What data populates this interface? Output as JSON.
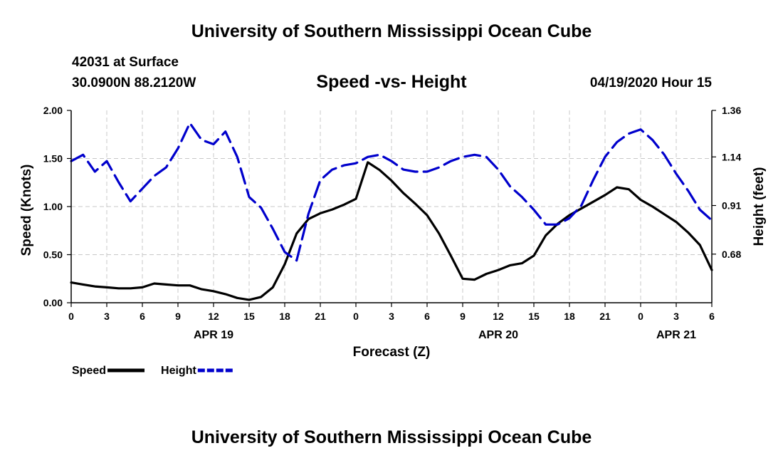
{
  "header": {
    "title": "University of Southern Mississippi Ocean Cube",
    "station": "42031 at Surface",
    "coords": "30.0900N 88.2120W",
    "datetime": "04/19/2020 Hour 15"
  },
  "footer": {
    "title": "University of Southern Mississippi Ocean Cube"
  },
  "chart_data": {
    "type": "line",
    "title": "Speed -vs- Height",
    "xlabel": "Forecast (Z)",
    "ylabel": "Speed (Knots)",
    "y2label": "Height (feet)",
    "x_range": [
      0,
      54
    ],
    "x_ticks": [
      0,
      3,
      6,
      9,
      12,
      15,
      18,
      21,
      24,
      27,
      30,
      33,
      36,
      39,
      42,
      45,
      48,
      51,
      54
    ],
    "x_tick_labels": [
      "0",
      "3",
      "6",
      "9",
      "12",
      "15",
      "18",
      "21",
      "0",
      "3",
      "6",
      "9",
      "12",
      "15",
      "18",
      "21",
      "0",
      "3",
      "6"
    ],
    "date_labels": [
      {
        "x": 12,
        "text": "APR 19"
      },
      {
        "x": 36,
        "text": "APR 20"
      },
      {
        "x": 51,
        "text": "APR 21"
      }
    ],
    "ylim": [
      0,
      2
    ],
    "y_ticks": [
      0,
      0.5,
      1.0,
      1.5,
      2.0
    ],
    "y_tick_labels": [
      "0.00",
      "0.50",
      "1.00",
      "1.50",
      "2.00"
    ],
    "y2lim": [
      0.45,
      1.36
    ],
    "y2_ticks": [
      0.68,
      0.91,
      1.14,
      1.36
    ],
    "y2_tick_labels": [
      "0.68",
      "0.91",
      "1.14",
      "1.36"
    ],
    "grid": true,
    "legend": "bottom-left",
    "series": [
      {
        "name": "Speed",
        "axis": "left",
        "color": "#000000",
        "style": "solid",
        "x": [
          0,
          1,
          2,
          3,
          4,
          5,
          6,
          7,
          8,
          9,
          10,
          11,
          12,
          13,
          14,
          15,
          16,
          17,
          18,
          19,
          20,
          21,
          22,
          23,
          24,
          25,
          26,
          27,
          28,
          29,
          30,
          31,
          32,
          33,
          34,
          35,
          36,
          37,
          38,
          39,
          40,
          41,
          42,
          43,
          44,
          45,
          46,
          47,
          48,
          49,
          50,
          51,
          52,
          53,
          54
        ],
        "values": [
          0.21,
          0.19,
          0.17,
          0.16,
          0.15,
          0.15,
          0.16,
          0.2,
          0.19,
          0.18,
          0.18,
          0.14,
          0.12,
          0.09,
          0.05,
          0.03,
          0.06,
          0.16,
          0.4,
          0.72,
          0.87,
          0.93,
          0.97,
          1.02,
          1.08,
          1.46,
          1.38,
          1.27,
          1.14,
          1.03,
          0.91,
          0.72,
          0.49,
          0.25,
          0.24,
          0.3,
          0.34,
          0.39,
          0.41,
          0.49,
          0.7,
          0.82,
          0.91,
          0.98,
          1.05,
          1.12,
          1.2,
          1.18,
          1.07,
          1.0,
          0.92,
          0.84,
          0.73,
          0.6,
          0.34
        ]
      },
      {
        "name": "Height",
        "axis": "right",
        "color": "#0000cc",
        "style": "dashed",
        "x": [
          0,
          1,
          2,
          3,
          4,
          5,
          6,
          7,
          8,
          9,
          10,
          11,
          12,
          13,
          14,
          15,
          16,
          17,
          18,
          19,
          20,
          21,
          22,
          23,
          24,
          25,
          26,
          27,
          28,
          29,
          30,
          31,
          32,
          33,
          34,
          35,
          36,
          37,
          38,
          39,
          40,
          41,
          42,
          43,
          44,
          45,
          46,
          47,
          48,
          49,
          50,
          51,
          52,
          53,
          54
        ],
        "values": [
          1.12,
          1.15,
          1.07,
          1.12,
          1.02,
          0.93,
          0.99,
          1.05,
          1.09,
          1.18,
          1.3,
          1.22,
          1.2,
          1.26,
          1.14,
          0.95,
          0.9,
          0.8,
          0.69,
          0.65,
          0.87,
          1.03,
          1.08,
          1.1,
          1.11,
          1.14,
          1.15,
          1.12,
          1.08,
          1.07,
          1.07,
          1.09,
          1.12,
          1.14,
          1.15,
          1.14,
          1.08,
          1.0,
          0.95,
          0.89,
          0.82,
          0.82,
          0.85,
          0.91,
          1.03,
          1.14,
          1.21,
          1.25,
          1.27,
          1.22,
          1.15,
          1.06,
          0.98,
          0.89,
          0.84
        ]
      }
    ]
  }
}
